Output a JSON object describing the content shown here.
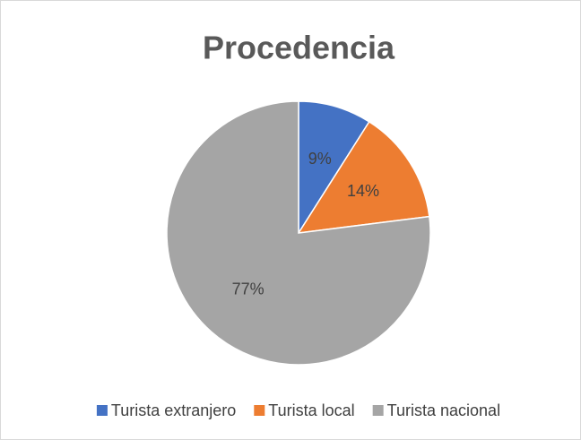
{
  "chart_data": {
    "type": "pie",
    "title": "Procedencia",
    "categories": [
      "Turista extranjero",
      "Turista local",
      "Turista nacional"
    ],
    "values": [
      9,
      14,
      77
    ],
    "value_labels": [
      "9%",
      "14%",
      "77%"
    ],
    "colors": [
      "#4472c4",
      "#ed7d31",
      "#a5a5a5"
    ],
    "legend": "bottom"
  }
}
